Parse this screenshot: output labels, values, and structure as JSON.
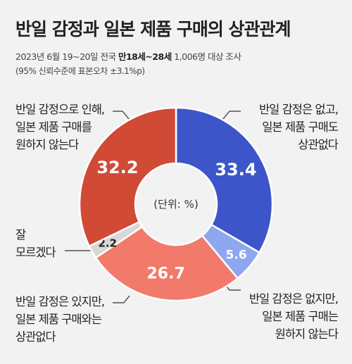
{
  "title": "반일 감정과 일본 제품 구매의 상관관계",
  "survey": {
    "prefix": "2023년 6월 19~20일 전국 ",
    "highlight": "만18세~28세",
    "suffix": " 1,006명 대상 조사"
  },
  "margin_note": "(95% 신뢰수준에 표본오차 ±3.1%p)",
  "unit_label": "(단위: %)",
  "colors": {
    "no_sentiment_unrelated": "#3c55c9",
    "no_sentiment_dont_want": "#8fa7ee",
    "sentiment_unrelated": "#f17a6b",
    "dont_know": "#d7d7d7",
    "sentiment_dont_want": "#d04a36"
  },
  "chart_data": {
    "type": "pie",
    "donut": true,
    "title": "반일 감정과 일본 제품 구매의 상관관계",
    "unit": "%",
    "slices": [
      {
        "id": "a",
        "value": 33.4,
        "color": "#3c55c9",
        "label_color": "#ffffff",
        "label_lines": [
          "반일 감정은 없고,",
          "일본 제품 구매도",
          "상관없다"
        ]
      },
      {
        "id": "b",
        "value": 5.6,
        "color": "#8fa7ee",
        "label_color": "#ffffff",
        "label_lines": [
          "반일 감정은 없지만,",
          "일본 제품 구매는",
          "원하지 않는다"
        ]
      },
      {
        "id": "c",
        "value": 26.7,
        "color": "#f17a6b",
        "label_color": "#ffffff",
        "label_lines": [
          "반일 감정은 있지만,",
          "일본 제품 구매와는",
          "상관없다"
        ]
      },
      {
        "id": "d",
        "value": 2.2,
        "color": "#d7d7d7",
        "label_color": "#222222",
        "label_lines": [
          "잘",
          "모르겠다"
        ]
      },
      {
        "id": "e",
        "value": 32.2,
        "color": "#d04a36",
        "label_color": "#ffffff",
        "label_lines": [
          "반일 감정으로 인해,",
          "일본 제품 구매를",
          "원하지 않는다"
        ]
      }
    ]
  }
}
